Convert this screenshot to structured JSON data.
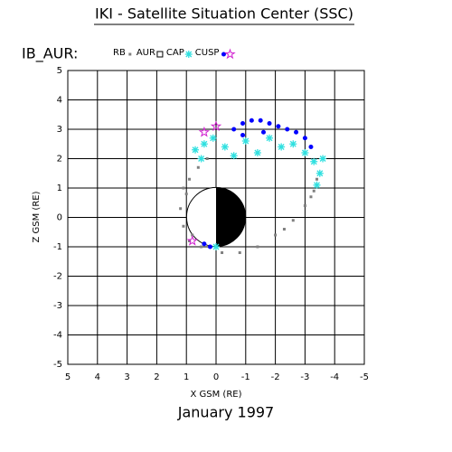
{
  "chart_data": {
    "type": "scatter",
    "title": "IKI - Satellite Situation Center (SSC)",
    "label": "IB_AUR:",
    "xlabel": "X GSM (RE)",
    "ylabel": "Z GSM (RE)",
    "date": "January    1997",
    "xlim": [
      5,
      -5
    ],
    "ylim": [
      -5,
      5
    ],
    "xticks": [
      5,
      4,
      3,
      2,
      1,
      0,
      -1,
      -2,
      -3,
      -4,
      -5
    ],
    "yticks": [
      5,
      4,
      3,
      2,
      1,
      0,
      -1,
      -2,
      -3,
      -4,
      -5
    ],
    "grid": true,
    "series": [
      {
        "name": "RB",
        "color": "#808080",
        "marker": "square",
        "x": [
          1.0,
          1.2,
          1.1,
          0.9,
          0.5,
          -0.2,
          -0.8,
          -1.4,
          -2.0,
          -2.6,
          -3.0,
          -3.3,
          -3.4,
          0.9,
          0.6,
          1.1,
          -2.3,
          -3.2,
          0.3,
          0.8
        ],
        "values": [
          0.8,
          0.3,
          -0.3,
          -0.8,
          -1.0,
          -1.2,
          -1.2,
          -1.0,
          -0.6,
          -0.1,
          0.4,
          0.9,
          1.3,
          1.3,
          1.7,
          1.0,
          -0.4,
          0.7,
          2.0,
          -0.6
        ]
      },
      {
        "name": "AUR",
        "color": "#808080",
        "marker": "open-square",
        "x": [],
        "values": []
      },
      {
        "name": "CAP",
        "color": "#30e0e0",
        "marker": "asterisk",
        "x": [
          0.7,
          0.4,
          0.1,
          -0.3,
          -0.6,
          -1.0,
          -1.4,
          -1.8,
          -2.2,
          -2.6,
          -3.0,
          -3.3,
          -3.5,
          -3.6,
          -3.4,
          0.0,
          0.5
        ],
        "values": [
          2.3,
          2.5,
          2.7,
          2.4,
          2.1,
          2.6,
          2.2,
          2.7,
          2.4,
          2.5,
          2.2,
          1.9,
          1.5,
          2.0,
          1.1,
          -1.0,
          2.0
        ]
      },
      {
        "name": "CUSP",
        "color": "#0000ff",
        "marker": "dot",
        "x": [
          -0.6,
          -0.9,
          -1.2,
          -1.5,
          -1.8,
          -2.1,
          -2.4,
          -2.7,
          -3.0,
          -3.2,
          -0.9,
          -1.6,
          0.4,
          0.2
        ],
        "values": [
          3.0,
          3.2,
          3.3,
          3.3,
          3.2,
          3.1,
          3.0,
          2.9,
          2.7,
          2.4,
          2.8,
          2.9,
          -0.9,
          -1.0
        ]
      },
      {
        "color": "#d020d0",
        "marker": "star",
        "x": [
          0.4,
          0.0,
          0.8
        ],
        "values": [
          2.9,
          3.1,
          -0.8
        ]
      }
    ]
  }
}
